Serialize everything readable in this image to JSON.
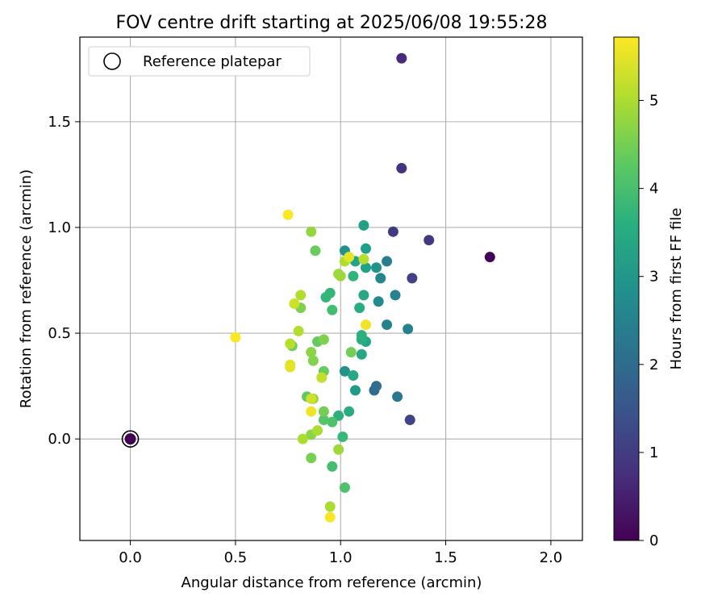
{
  "chart_data": {
    "type": "scatter",
    "title": "FOV centre drift starting at 2025/06/08 19:55:28",
    "xlabel": "Angular distance from reference (arcmin)",
    "ylabel": "Rotation from reference (arcmin)",
    "xlim": [
      -0.24,
      2.15
    ],
    "ylim": [
      -0.48,
      1.9
    ],
    "xticks": [
      "0.0",
      "0.5",
      "1.0",
      "1.5",
      "2.0"
    ],
    "yticks": [
      "0.0",
      "0.5",
      "1.0",
      "1.5"
    ],
    "grid": true,
    "legend": {
      "placement": "top-left",
      "entries": [
        "Reference platepar"
      ]
    },
    "reference_point": {
      "x": 0.0,
      "y": 0.0,
      "hours": 0.0
    },
    "colorbar": {
      "label": "Hours from first FF file",
      "range": [
        0,
        5.72
      ],
      "ticks": [
        "0",
        "1",
        "2",
        "3",
        "4",
        "5"
      ],
      "colormap": "viridis"
    },
    "points": [
      {
        "x": 1.71,
        "y": 0.86,
        "hours": 0.05
      },
      {
        "x": 1.29,
        "y": 1.8,
        "hours": 0.7
      },
      {
        "x": 1.29,
        "y": 1.28,
        "hours": 0.85
      },
      {
        "x": 1.42,
        "y": 0.94,
        "hours": 0.95
      },
      {
        "x": 1.25,
        "y": 0.98,
        "hours": 1.0
      },
      {
        "x": 1.34,
        "y": 0.76,
        "hours": 1.1
      },
      {
        "x": 1.33,
        "y": 0.09,
        "hours": 1.15
      },
      {
        "x": 1.16,
        "y": 0.23,
        "hours": 1.95
      },
      {
        "x": 1.17,
        "y": 0.25,
        "hours": 2.05
      },
      {
        "x": 1.27,
        "y": 0.2,
        "hours": 2.3
      },
      {
        "x": 1.26,
        "y": 0.68,
        "hours": 2.55
      },
      {
        "x": 1.22,
        "y": 0.84,
        "hours": 2.45
      },
      {
        "x": 1.22,
        "y": 0.54,
        "hours": 2.5
      },
      {
        "x": 1.32,
        "y": 0.52,
        "hours": 2.5
      },
      {
        "x": 1.19,
        "y": 0.76,
        "hours": 2.65
      },
      {
        "x": 1.18,
        "y": 0.65,
        "hours": 2.7
      },
      {
        "x": 1.17,
        "y": 0.81,
        "hours": 2.9
      },
      {
        "x": 1.02,
        "y": 0.89,
        "hours": 2.9
      },
      {
        "x": 1.02,
        "y": 0.32,
        "hours": 2.9
      },
      {
        "x": 1.07,
        "y": 0.23,
        "hours": 3.1
      },
      {
        "x": 1.12,
        "y": 0.9,
        "hours": 3.2
      },
      {
        "x": 1.11,
        "y": 1.01,
        "hours": 3.25
      },
      {
        "x": 1.07,
        "y": 0.84,
        "hours": 3.3
      },
      {
        "x": 1.12,
        "y": 0.81,
        "hours": 3.3
      },
      {
        "x": 1.12,
        "y": 0.46,
        "hours": 3.35
      },
      {
        "x": 1.1,
        "y": 0.4,
        "hours": 3.4
      },
      {
        "x": 1.06,
        "y": 0.3,
        "hours": 3.4
      },
      {
        "x": 1.11,
        "y": 0.68,
        "hours": 3.4
      },
      {
        "x": 1.09,
        "y": 0.62,
        "hours": 3.5
      },
      {
        "x": 1.04,
        "y": 0.13,
        "hours": 3.5
      },
      {
        "x": 1.1,
        "y": 0.47,
        "hours": 3.55
      },
      {
        "x": 1.1,
        "y": 0.49,
        "hours": 3.6
      },
      {
        "x": 0.99,
        "y": 0.11,
        "hours": 3.6
      },
      {
        "x": 1.06,
        "y": 0.77,
        "hours": 3.7
      },
      {
        "x": 0.95,
        "y": 0.69,
        "hours": 3.8
      },
      {
        "x": 0.93,
        "y": 0.67,
        "hours": 3.8
      },
      {
        "x": 1.01,
        "y": 0.01,
        "hours": 3.85
      },
      {
        "x": 0.96,
        "y": 0.61,
        "hours": 4.0
      },
      {
        "x": 0.96,
        "y": -0.13,
        "hours": 4.0
      },
      {
        "x": 1.02,
        "y": -0.23,
        "hours": 4.1
      },
      {
        "x": 0.96,
        "y": 0.08,
        "hours": 4.1
      },
      {
        "x": 0.92,
        "y": 0.09,
        "hours": 4.2
      },
      {
        "x": 0.84,
        "y": 0.2,
        "hours": 4.3
      },
      {
        "x": 0.89,
        "y": 0.46,
        "hours": 4.35
      },
      {
        "x": 0.92,
        "y": 0.32,
        "hours": 4.4
      },
      {
        "x": 0.88,
        "y": 0.89,
        "hours": 4.4
      },
      {
        "x": 0.77,
        "y": 0.44,
        "hours": 4.45
      },
      {
        "x": 1.05,
        "y": 0.41,
        "hours": 4.5
      },
      {
        "x": 0.92,
        "y": 0.13,
        "hours": 4.5
      },
      {
        "x": 0.86,
        "y": -0.09,
        "hours": 4.55
      },
      {
        "x": 0.81,
        "y": 0.62,
        "hours": 4.6
      },
      {
        "x": 0.92,
        "y": 0.47,
        "hours": 4.6
      },
      {
        "x": 0.87,
        "y": 0.37,
        "hours": 4.65
      },
      {
        "x": 0.86,
        "y": 0.41,
        "hours": 4.7
      },
      {
        "x": 0.86,
        "y": 0.02,
        "hours": 4.7
      },
      {
        "x": 0.87,
        "y": 0.19,
        "hours": 4.75
      },
      {
        "x": 0.86,
        "y": 0.98,
        "hours": 4.8
      },
      {
        "x": 0.99,
        "y": 0.78,
        "hours": 4.85
      },
      {
        "x": 1.0,
        "y": 0.77,
        "hours": 4.9
      },
      {
        "x": 0.99,
        "y": -0.05,
        "hours": 4.9
      },
      {
        "x": 0.89,
        "y": 0.04,
        "hours": 5.0
      },
      {
        "x": 0.82,
        "y": 0.0,
        "hours": 5.0
      },
      {
        "x": 0.95,
        "y": -0.32,
        "hours": 5.0
      },
      {
        "x": 0.8,
        "y": 0.51,
        "hours": 5.05
      },
      {
        "x": 0.81,
        "y": 0.68,
        "hours": 5.05
      },
      {
        "x": 1.02,
        "y": 0.84,
        "hours": 5.05
      },
      {
        "x": 1.11,
        "y": 0.85,
        "hours": 5.1
      },
      {
        "x": 0.76,
        "y": 0.45,
        "hours": 5.1
      },
      {
        "x": 0.91,
        "y": 0.29,
        "hours": 5.2
      },
      {
        "x": 0.78,
        "y": 0.64,
        "hours": 5.3
      },
      {
        "x": 0.86,
        "y": 0.19,
        "hours": 5.3
      },
      {
        "x": 0.76,
        "y": 0.35,
        "hours": 5.45
      },
      {
        "x": 0.76,
        "y": 0.34,
        "hours": 5.5
      },
      {
        "x": 1.04,
        "y": 0.86,
        "hours": 5.5
      },
      {
        "x": 0.86,
        "y": 0.13,
        "hours": 5.6
      },
      {
        "x": 1.12,
        "y": 0.54,
        "hours": 5.6
      },
      {
        "x": 0.95,
        "y": -0.37,
        "hours": 5.65
      },
      {
        "x": 0.5,
        "y": 0.48,
        "hours": 5.7
      },
      {
        "x": 0.75,
        "y": 1.06,
        "hours": 5.7
      }
    ]
  }
}
